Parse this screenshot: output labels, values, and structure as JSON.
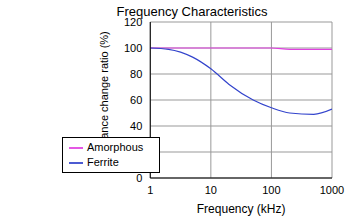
{
  "chart_data": {
    "type": "line",
    "title": "Frequency Characteristics",
    "x_label": "Frequency (kHz)",
    "y_label": "Inductance change ratio (%)",
    "x": [
      1,
      2,
      5,
      10,
      20,
      50,
      100,
      200,
      500,
      1000
    ],
    "series": [
      {
        "name": "Amorphous",
        "color": "#e040e0",
        "values": [
          100,
          100,
          100,
          100,
          100,
          100,
          100,
          99,
          99,
          99
        ]
      },
      {
        "name": "Ferrite",
        "color": "#3344cc",
        "values": [
          100,
          99,
          93,
          84,
          72,
          60,
          54,
          50,
          49,
          53
        ]
      }
    ],
    "xlim": [
      1,
      1000
    ],
    "xticks": [
      1,
      10,
      100,
      1000
    ],
    "ylim": [
      0,
      120
    ],
    "yticks": [
      0,
      20,
      40,
      60,
      80,
      100,
      120
    ],
    "log": "x",
    "grid": true,
    "legend": "lower left"
  }
}
